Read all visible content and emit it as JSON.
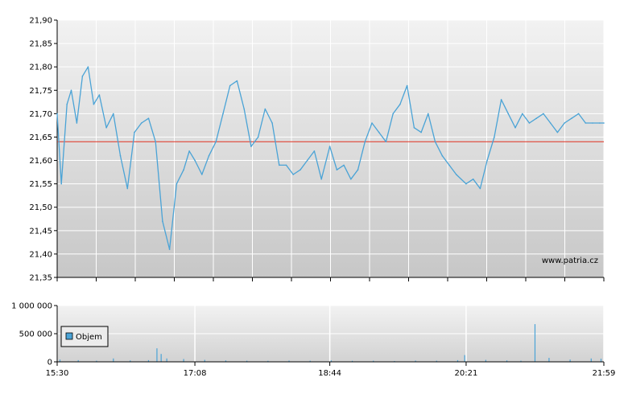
{
  "chart_data": [
    {
      "type": "line",
      "title": "",
      "xlabel": "",
      "ylabel": "",
      "ylim": [
        21.35,
        21.9
      ],
      "y_ticks": [
        "21,90",
        "21,85",
        "21,80",
        "21,75",
        "21,70",
        "21,65",
        "21,60",
        "21,55",
        "21,50",
        "21,45",
        "21,40",
        "21,35"
      ],
      "reference_line": {
        "value": 21.64,
        "color": "#e03020"
      },
      "line_color": "#4aa3d6",
      "watermark": "www.patria.cz",
      "series": [
        {
          "x": [
            "15:30",
            "15:33",
            "15:37",
            "15:40",
            "15:44",
            "15:48",
            "15:52",
            "15:56",
            "16:00",
            "16:05",
            "16:10",
            "16:15",
            "16:20",
            "16:25",
            "16:30",
            "16:35",
            "16:40",
            "16:45",
            "16:50",
            "16:55",
            "17:00",
            "17:04",
            "17:08",
            "17:13",
            "17:18",
            "17:23",
            "17:28",
            "17:33",
            "17:38",
            "17:43",
            "17:48",
            "17:53",
            "17:58",
            "18:03",
            "18:08",
            "18:13",
            "18:18",
            "18:23",
            "18:28",
            "18:33",
            "18:38",
            "18:44",
            "18:49",
            "18:54",
            "18:59",
            "19:04",
            "19:09",
            "19:14",
            "19:19",
            "19:24",
            "19:29",
            "19:34",
            "19:39",
            "19:44",
            "19:49",
            "19:54",
            "19:59",
            "20:04",
            "20:09",
            "20:14",
            "20:21",
            "20:26",
            "20:31",
            "20:36",
            "20:41",
            "20:46",
            "20:51",
            "20:56",
            "21:01",
            "21:06",
            "21:11",
            "21:16",
            "21:21",
            "21:26",
            "21:31",
            "21:36",
            "21:41",
            "21:46",
            "21:51",
            "21:56",
            "21:59"
          ],
          "values": [
            21.7,
            21.55,
            21.72,
            21.75,
            21.68,
            21.78,
            21.8,
            21.72,
            21.74,
            21.67,
            21.7,
            21.61,
            21.54,
            21.66,
            21.68,
            21.69,
            21.64,
            21.47,
            21.41,
            21.55,
            21.58,
            21.62,
            21.6,
            21.57,
            21.61,
            21.64,
            21.7,
            21.76,
            21.77,
            21.71,
            21.63,
            21.65,
            21.71,
            21.68,
            21.59,
            21.59,
            21.57,
            21.58,
            21.6,
            21.62,
            21.56,
            21.63,
            21.58,
            21.59,
            21.56,
            21.58,
            21.64,
            21.68,
            21.66,
            21.64,
            21.7,
            21.72,
            21.76,
            21.67,
            21.66,
            21.7,
            21.64,
            21.61,
            21.59,
            21.57,
            21.55,
            21.56,
            21.54,
            21.6,
            21.65,
            21.73,
            21.7,
            21.67,
            21.7,
            21.68,
            21.69,
            21.7,
            21.68,
            21.66,
            21.68,
            21.69,
            21.7,
            21.68,
            21.68,
            21.68,
            21.68
          ]
        }
      ],
      "grid": true
    },
    {
      "type": "bar",
      "title": "",
      "ylim": [
        0,
        1000000
      ],
      "y_ticks": [
        "1 000 000",
        "500 000",
        "0"
      ],
      "x_ticks": [
        "15:30",
        "17:08",
        "18:44",
        "20:21",
        "21:59"
      ],
      "legend": {
        "label": "Objem",
        "placement": "left",
        "color": "#4aa3d6"
      },
      "bar_color": "#4aa3d6",
      "series": [
        {
          "name": "Objem",
          "x": [
            "15:32",
            "15:45",
            "15:58",
            "16:10",
            "16:22",
            "16:35",
            "16:41",
            "16:44",
            "16:48",
            "17:00",
            "17:15",
            "17:30",
            "17:45",
            "18:00",
            "18:15",
            "18:30",
            "18:45",
            "19:00",
            "19:15",
            "19:30",
            "19:45",
            "20:00",
            "20:15",
            "20:20",
            "20:35",
            "20:50",
            "21:00",
            "21:10",
            "21:20",
            "21:35",
            "21:50",
            "21:57"
          ],
          "values": [
            40000,
            30000,
            20000,
            60000,
            25000,
            30000,
            240000,
            140000,
            60000,
            50000,
            35000,
            25000,
            20000,
            18000,
            22000,
            20000,
            25000,
            18000,
            20000,
            15000,
            22000,
            20000,
            30000,
            120000,
            35000,
            25000,
            20000,
            670000,
            70000,
            40000,
            60000,
            55000
          ]
        }
      ],
      "grid": true
    }
  ]
}
